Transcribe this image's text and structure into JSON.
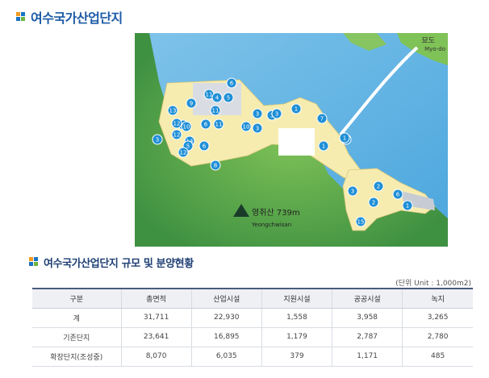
{
  "page": {
    "title": "여수국가산업단지",
    "subtitle": "여수국가산업단지 규모 및 분양현황",
    "unit_note": "(단위 Unit : 1,000m2)"
  },
  "map": {
    "island_label": "묘도",
    "island_label_en": "Myo-do",
    "mountain_label": "영취산 739m",
    "mountain_label_en": "Yeongchwisan",
    "markers": [
      "6",
      "11",
      "4",
      "5",
      "9",
      "11",
      "13",
      "9",
      "3",
      "12",
      "10",
      "6",
      "11",
      "10",
      "3",
      "3",
      "1",
      "3",
      "12",
      "1",
      "7",
      "3",
      "14",
      "5",
      "6",
      "1",
      "3",
      "12",
      "8",
      "1",
      "2",
      "2",
      "6",
      "1",
      "15"
    ]
  },
  "table": {
    "headers": [
      "구분",
      "총면적",
      "산업시설",
      "지원시설",
      "공공시설",
      "녹지"
    ],
    "rows": [
      [
        "계",
        "31,711",
        "22,930",
        "1,558",
        "3,958",
        "3,265"
      ],
      [
        "기존단지",
        "23,641",
        "16,895",
        "1,179",
        "2,787",
        "2,780"
      ],
      [
        "확장단지(조성중)",
        "8,070",
        "6,035",
        "379",
        "1,171",
        "485"
      ]
    ]
  }
}
